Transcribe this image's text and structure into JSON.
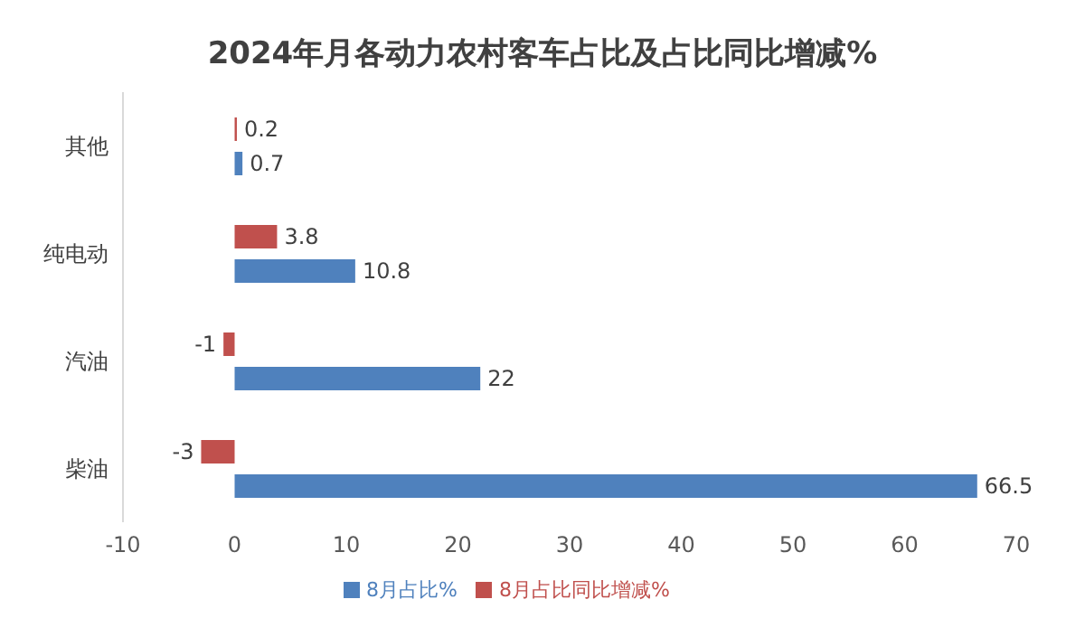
{
  "chart_data": {
    "type": "bar",
    "orientation": "horizontal",
    "title": "2024年月各动力农村客车占比及占比同比增减%",
    "categories": [
      "其他",
      "纯电动",
      "汽油",
      "柴油"
    ],
    "series": [
      {
        "name": "8月占比同比增减%",
        "color": "#c0504d",
        "values": [
          0.2,
          3.8,
          -1,
          -3
        ]
      },
      {
        "name": "8月占比%",
        "color": "#4f81bd",
        "values": [
          0.7,
          10.8,
          22,
          66.5
        ]
      }
    ],
    "xlim": [
      -10,
      70
    ],
    "xticks": [
      -10,
      0,
      10,
      20,
      30,
      40,
      50,
      60,
      70
    ],
    "data_labels": true,
    "legend": "bottom",
    "grid": false
  }
}
